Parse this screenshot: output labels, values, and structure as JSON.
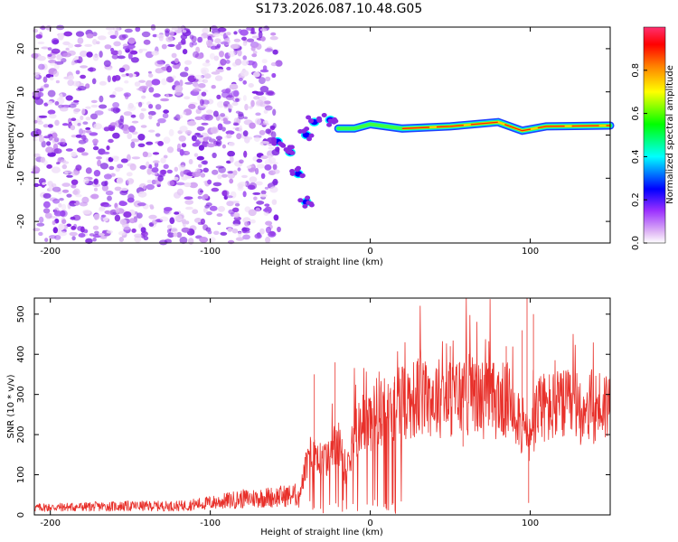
{
  "title": "S173.2026.087.10.48.G05",
  "chart_data": [
    {
      "type": "heatmap",
      "xlabel": "Height of straight line (km)",
      "ylabel": "Frequency (Hz)",
      "xlim": [
        -210,
        150
      ],
      "ylim": [
        -25,
        25
      ],
      "xticks": [
        -200,
        -100,
        0,
        100
      ],
      "yticks": [
        -20,
        -10,
        0,
        10,
        20
      ],
      "colorbar": {
        "label": "Normalized spectral amplitude",
        "range": [
          0,
          1
        ],
        "ticks": [
          0.0,
          0.2,
          0.4,
          0.6,
          0.8
        ],
        "tick_labels": [
          "0.0",
          "0.2",
          "0.4",
          "0.6",
          "0.8"
        ],
        "colormap": [
          "#ffffff",
          "#e6c8f0",
          "#9b30ff",
          "#0000ff",
          "#00ffff",
          "#00ff00",
          "#ffff00",
          "#ff7f00",
          "#ff0000"
        ]
      },
      "noise_region_x": [
        -210,
        -57
      ],
      "signal_ridge": [
        {
          "x": -58,
          "f": -1.5
        },
        {
          "x": -50,
          "f": -4
        },
        {
          "x": -45,
          "f": -9
        },
        {
          "x": -40,
          "f": -15.5
        },
        {
          "x": -40,
          "f": 0
        },
        {
          "x": -35,
          "f": 3
        },
        {
          "x": -25,
          "f": 3.5
        },
        {
          "x": -20,
          "f": 1.5
        },
        {
          "x": -10,
          "f": 1.5
        },
        {
          "x": 0,
          "f": 2.5
        },
        {
          "x": 20,
          "f": 1.5
        },
        {
          "x": 50,
          "f": 2.0
        },
        {
          "x": 80,
          "f": 3.0
        },
        {
          "x": 95,
          "f": 1.0
        },
        {
          "x": 110,
          "f": 2.0
        },
        {
          "x": 150,
          "f": 2.2
        }
      ]
    },
    {
      "type": "line",
      "xlabel": "Height of straight line (km)",
      "ylabel": "SNR (10 * v/v)",
      "xlim": [
        -210,
        150
      ],
      "ylim": [
        0,
        540
      ],
      "xticks": [
        -200,
        -100,
        0,
        100
      ],
      "yticks": [
        0,
        100,
        200,
        300,
        400,
        500
      ],
      "color": "#e8302a",
      "series": [
        {
          "x": [
            -210,
            -180,
            -150,
            -120,
            -100,
            -80,
            -60,
            -45,
            -40,
            -35,
            -30,
            -25,
            -20,
            -15,
            -10,
            -5,
            0,
            10,
            20,
            30,
            40,
            50,
            60,
            70,
            80,
            90,
            95,
            100,
            105,
            110,
            120,
            130,
            140,
            150
          ],
          "values": [
            18,
            20,
            22,
            22,
            30,
            40,
            45,
            50,
            120,
            170,
            130,
            150,
            180,
            110,
            200,
            220,
            240,
            260,
            285,
            290,
            295,
            290,
            300,
            290,
            285,
            280,
            220,
            180,
            270,
            265,
            270,
            265,
            270,
            275
          ]
        }
      ],
      "spikes": [
        {
          "x": -35,
          "y": 350
        },
        {
          "x": -22,
          "y": 380
        },
        {
          "x": 15,
          "y": 330
        },
        {
          "x": 30,
          "y": 390
        },
        {
          "x": 50,
          "y": 420
        },
        {
          "x": 70,
          "y": 375
        },
        {
          "x": 85,
          "y": 420
        },
        {
          "x": 95,
          "y": 460
        },
        {
          "x": 98,
          "y": 540
        },
        {
          "x": 99,
          "y": 30
        },
        {
          "x": 102,
          "y": 500
        },
        {
          "x": 58,
          "y": 170
        }
      ]
    }
  ]
}
